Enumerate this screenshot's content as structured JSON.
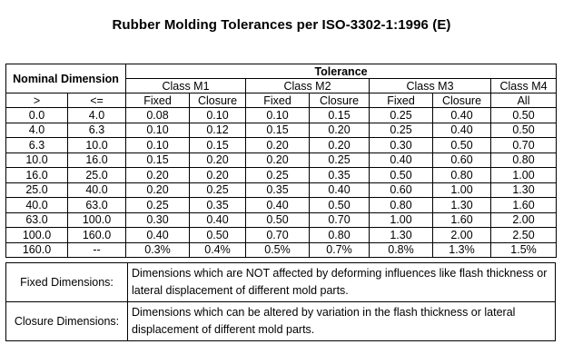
{
  "title": "Rubber Molding Tolerances per ISO-3302-1:1996 (E)",
  "header": {
    "nominal": "Nominal Dimension",
    "tolerance": "Tolerance",
    "classes": [
      "Class M1",
      "Class M2",
      "Class M3",
      "Class M4"
    ],
    "sub": [
      "Fixed",
      "Closure",
      "Fixed",
      "Closure",
      "Fixed",
      "Closure",
      "All"
    ],
    "gt": ">",
    "le": "<="
  },
  "rows": [
    [
      "0.0",
      "4.0",
      "0.08",
      "0.10",
      "0.10",
      "0.15",
      "0.25",
      "0.40",
      "0.50"
    ],
    [
      "4.0",
      "6.3",
      "0.10",
      "0.12",
      "0.15",
      "0.20",
      "0.25",
      "0.40",
      "0.50"
    ],
    [
      "6.3",
      "10.0",
      "0.10",
      "0.15",
      "0.20",
      "0.20",
      "0.30",
      "0.50",
      "0.70"
    ],
    [
      "10.0",
      "16.0",
      "0.15",
      "0.20",
      "0.20",
      "0.25",
      "0.40",
      "0.60",
      "0.80"
    ],
    [
      "16.0",
      "25.0",
      "0.20",
      "0.20",
      "0.25",
      "0.35",
      "0.50",
      "0.80",
      "1.00"
    ],
    [
      "25.0",
      "40.0",
      "0.20",
      "0.25",
      "0.35",
      "0.40",
      "0.60",
      "1.00",
      "1.30"
    ],
    [
      "40.0",
      "63.0",
      "0.25",
      "0.35",
      "0.40",
      "0.50",
      "0.80",
      "1.30",
      "1.60"
    ],
    [
      "63.0",
      "100.0",
      "0.30",
      "0.40",
      "0.50",
      "0.70",
      "1.00",
      "1.60",
      "2.00"
    ],
    [
      "100.0",
      "160.0",
      "0.40",
      "0.50",
      "0.70",
      "0.80",
      "1.30",
      "2.00",
      "2.50"
    ],
    [
      "160.0",
      "--",
      "0.3%",
      "0.4%",
      "0.5%",
      "0.7%",
      "0.8%",
      "1.3%",
      "1.5%"
    ]
  ],
  "notes": [
    {
      "label": "Fixed Dimensions:",
      "text": "Dimensions which are NOT affected by deforming influences like flash thickness or lateral displacement of different mold parts."
    },
    {
      "label": "Closure Dimensions:",
      "text": "Dimensions which can be altered by variation in the flash thickness or lateral displacement of different mold parts."
    }
  ]
}
